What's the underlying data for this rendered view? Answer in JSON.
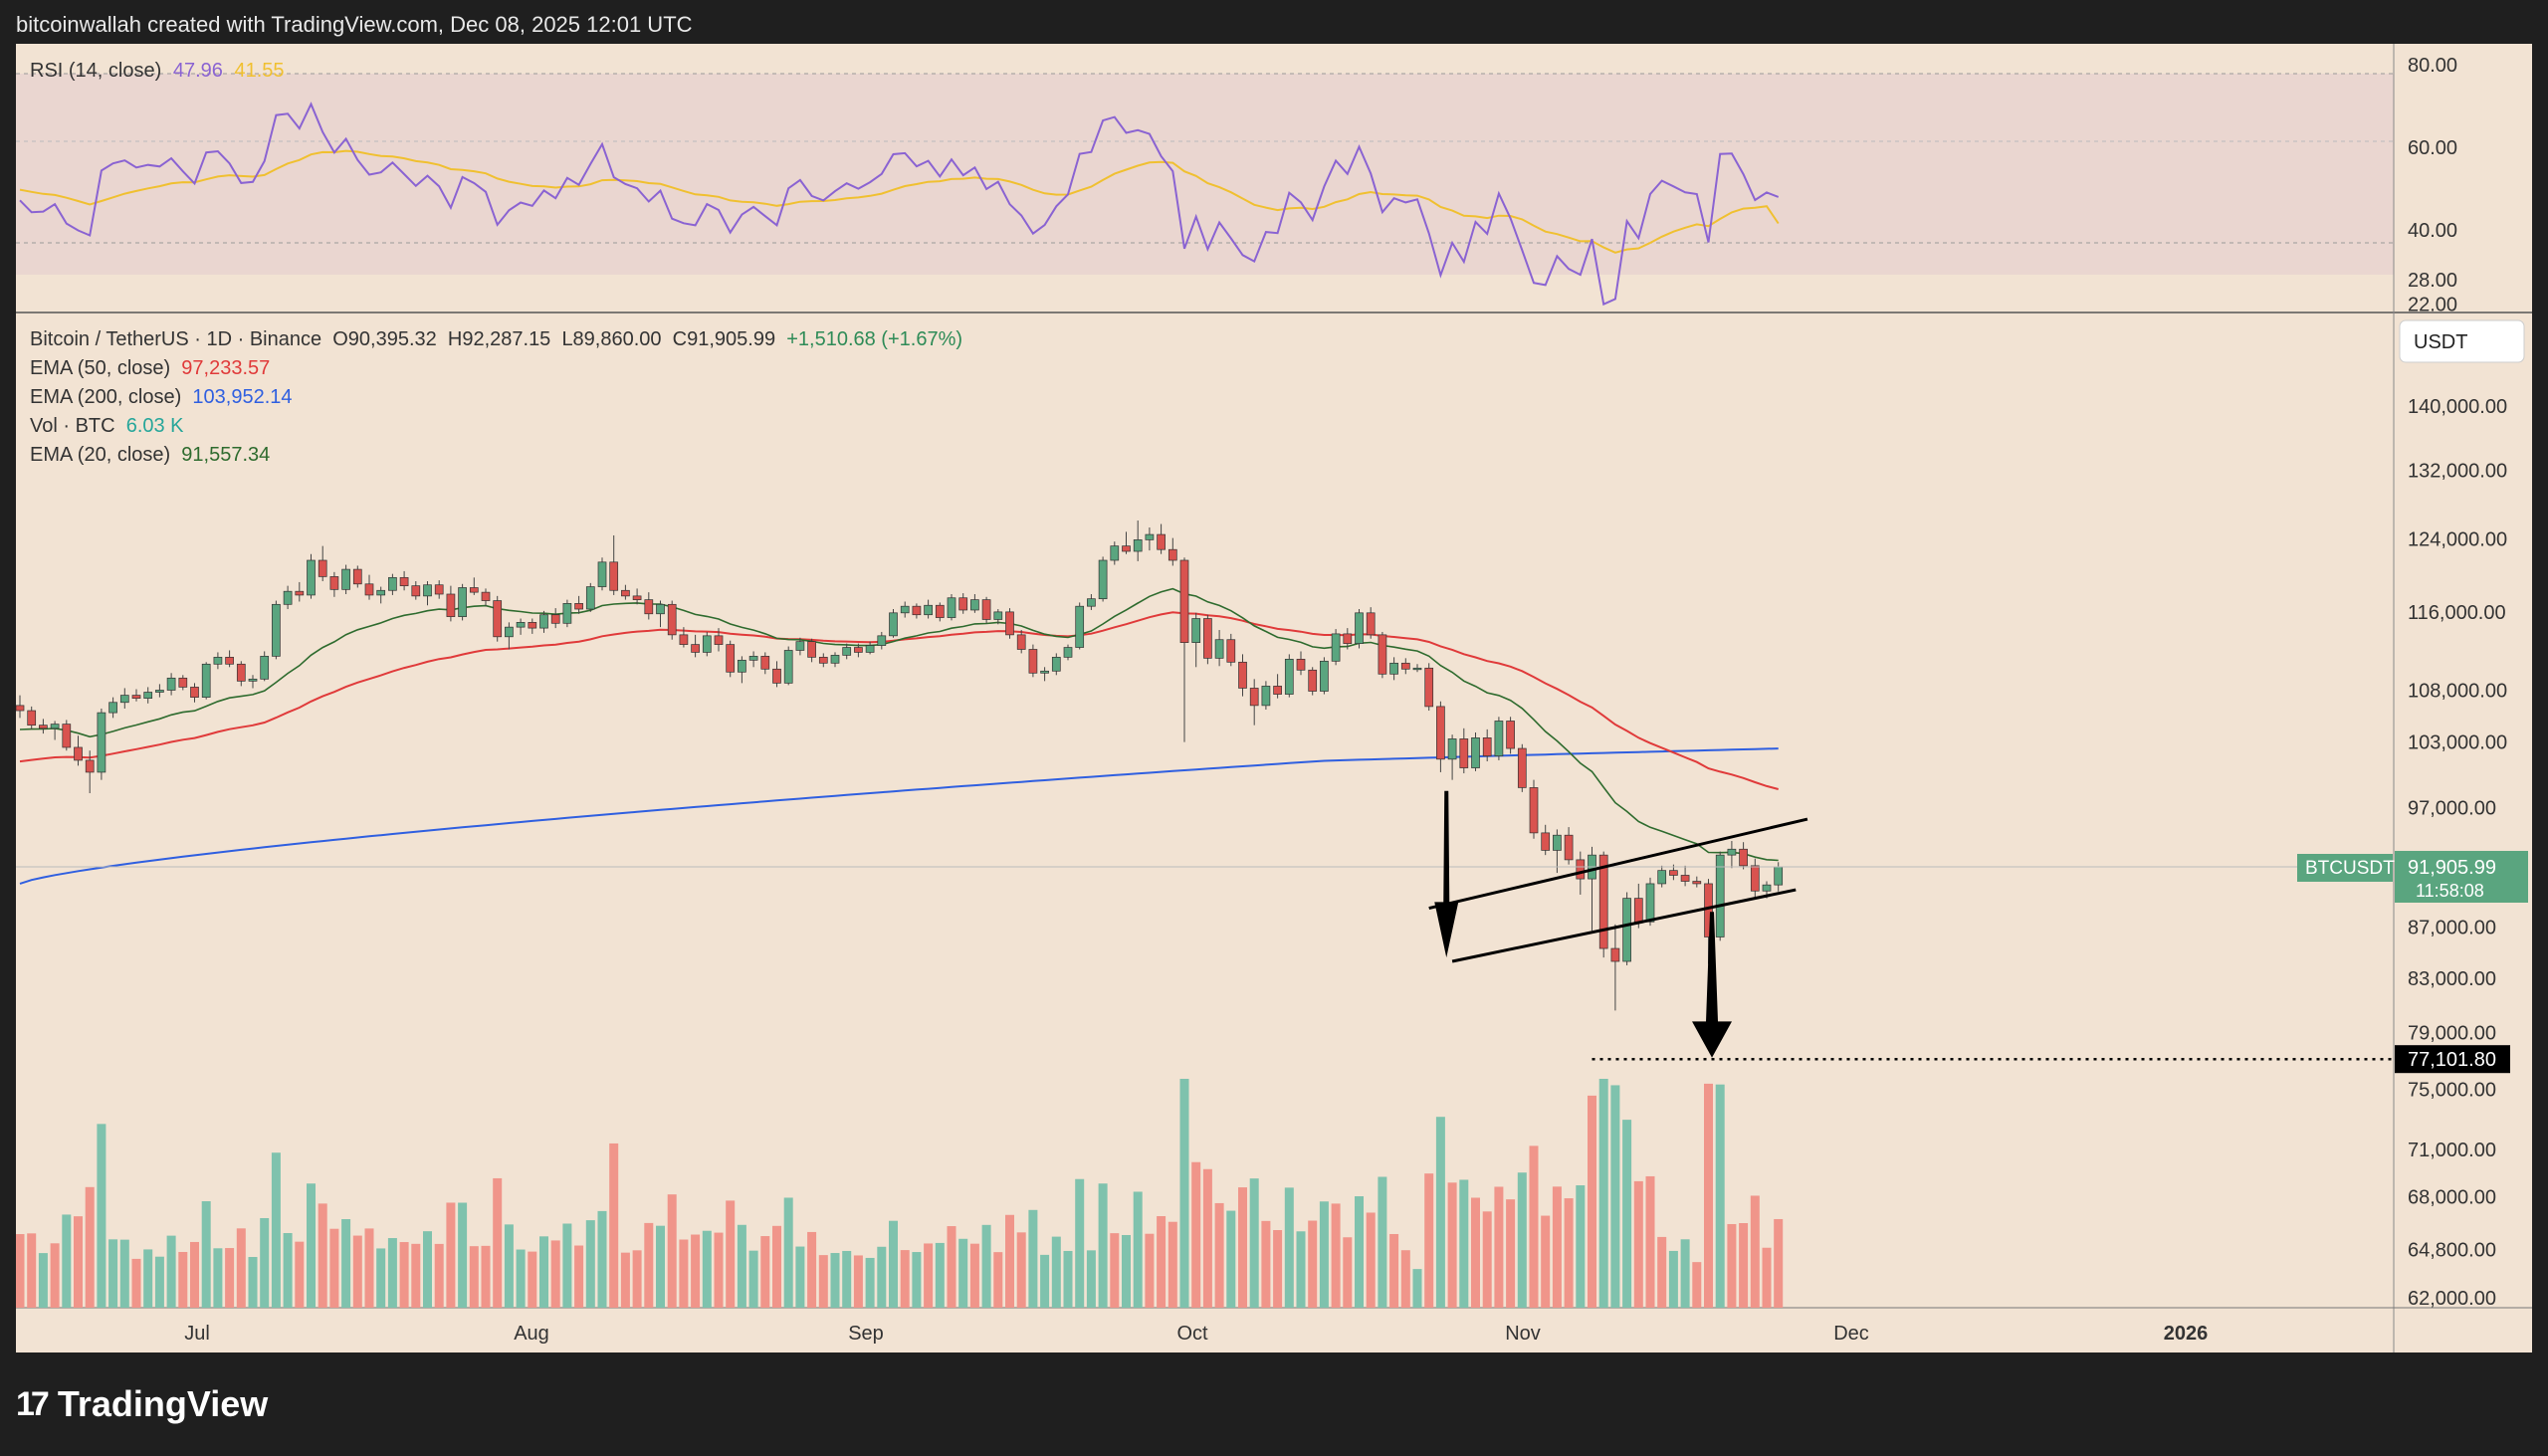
{
  "header": {
    "text": "bitcoinwallah created with TradingView.com, Dec 08, 2025 12:01 UTC"
  },
  "footer": {
    "brand": "TradingView",
    "logo_glyph": "17"
  },
  "colors": {
    "background": "#f2e3d3",
    "frame": "#1f1f1f",
    "up": "#5aa57f",
    "down": "#d9534f",
    "ema20": "#2e6b2e",
    "ema50": "#e03a3a",
    "ema200": "#2f5fe0",
    "rsi": "#8a63d2",
    "rsi_ma": "#f0c030",
    "vol_up": "#7fc2ad",
    "vol_down": "#f0958a"
  },
  "rsi_panel": {
    "title": "RSI (14, close)",
    "value1": "47.96",
    "value2": "41.55",
    "ticks": [
      "80.00",
      "60.00",
      "40.00",
      "28.00",
      "22.00"
    ]
  },
  "main_legend": {
    "symbol": "Bitcoin / TetherUS · 1D · Binance",
    "open": "O90,395.32",
    "high": "H92,287.15",
    "low": "L89,860.00",
    "close": "C91,905.99",
    "change": "+1,510.68 (+1.67%)",
    "ema50": {
      "label": "EMA (50, close)",
      "value": "97,233.57"
    },
    "ema200": {
      "label": "EMA (200, close)",
      "value": "103,952.14"
    },
    "vol": {
      "label": "Vol · BTC",
      "value": "6.03 K"
    },
    "ema20": {
      "label": "EMA (20, close)",
      "value": "91,557.34"
    }
  },
  "price_axis": {
    "currency": "USDT",
    "ticks": [
      "140,000.00",
      "132,000.00",
      "124,000.00",
      "116,000.00",
      "108,000.00",
      "103,000.00",
      "97,000.00",
      "87,000.00",
      "83,000.00",
      "79,000.00",
      "75,000.00",
      "71,000.00",
      "68,000.00",
      "64,800.00",
      "62,000.00"
    ]
  },
  "price_tag": {
    "symbol": "BTCUSDT",
    "price": "91,905.99",
    "countdown": "11:58:08"
  },
  "target_tag": {
    "price": "77,101.80"
  },
  "time_axis": {
    "labels": [
      "Jul",
      "Aug",
      "Sep",
      "Oct",
      "Nov",
      "Dec",
      "2026"
    ]
  },
  "chart_data": {
    "type": "candlestick",
    "log_scale": true,
    "ylim": [
      60000,
      150000
    ],
    "candles": [
      [
        106500,
        107500,
        105300,
        106000
      ],
      [
        106000,
        106400,
        104200,
        104600
      ],
      [
        104600,
        105200,
        103800,
        104300
      ],
      [
        104300,
        105000,
        103200,
        104700
      ],
      [
        104700,
        105100,
        102200,
        102500
      ],
      [
        102500,
        103600,
        100800,
        101300
      ],
      [
        101300,
        102200,
        98300,
        100200
      ],
      [
        100200,
        106200,
        99500,
        105800
      ],
      [
        105800,
        107300,
        105300,
        106800
      ],
      [
        106800,
        108200,
        106200,
        107500
      ],
      [
        107500,
        108100,
        106900,
        107200
      ],
      [
        107200,
        108300,
        106700,
        107800
      ],
      [
        107800,
        108600,
        107300,
        108000
      ],
      [
        108000,
        109700,
        107500,
        109200
      ],
      [
        109200,
        109500,
        108000,
        108300
      ],
      [
        108300,
        108700,
        106800,
        107300
      ],
      [
        107300,
        110800,
        107100,
        110600
      ],
      [
        110600,
        111800,
        110100,
        111300
      ],
      [
        111300,
        112000,
        110300,
        110600
      ],
      [
        110600,
        110900,
        108400,
        108900
      ],
      [
        108900,
        109500,
        108200,
        109100
      ],
      [
        109100,
        111900,
        108900,
        111400
      ],
      [
        111400,
        117200,
        111100,
        116800
      ],
      [
        116800,
        118800,
        116300,
        118200
      ],
      [
        118200,
        119200,
        117100,
        117800
      ],
      [
        117800,
        122300,
        117400,
        121600
      ],
      [
        121600,
        123200,
        119300,
        119800
      ],
      [
        119800,
        120300,
        117600,
        118400
      ],
      [
        118400,
        121100,
        117900,
        120600
      ],
      [
        120600,
        121000,
        118600,
        119000
      ],
      [
        119000,
        120000,
        117300,
        117800
      ],
      [
        117800,
        118700,
        116900,
        118300
      ],
      [
        118300,
        120100,
        117800,
        119700
      ],
      [
        119700,
        120400,
        118300,
        118800
      ],
      [
        118800,
        119300,
        117300,
        117700
      ],
      [
        117700,
        119300,
        116700,
        118900
      ],
      [
        118900,
        119400,
        117400,
        117900
      ],
      [
        117900,
        118800,
        115000,
        115500
      ],
      [
        115500,
        119000,
        115100,
        118600
      ],
      [
        118600,
        119700,
        117800,
        118100
      ],
      [
        118100,
        118500,
        116600,
        117200
      ],
      [
        117200,
        117700,
        112900,
        113400
      ],
      [
        113400,
        114900,
        112100,
        114400
      ],
      [
        114400,
        115300,
        113600,
        114900
      ],
      [
        114900,
        115300,
        113700,
        114300
      ],
      [
        114300,
        116100,
        113800,
        115700
      ],
      [
        115700,
        116400,
        114300,
        114800
      ],
      [
        114800,
        117300,
        114400,
        116900
      ],
      [
        116900,
        117700,
        115800,
        116300
      ],
      [
        116300,
        119100,
        116000,
        118700
      ],
      [
        118700,
        121900,
        118300,
        121400
      ],
      [
        121400,
        124400,
        117800,
        118300
      ],
      [
        118300,
        118900,
        117300,
        117700
      ],
      [
        117700,
        118500,
        116800,
        117300
      ],
      [
        117300,
        118100,
        115200,
        115800
      ],
      [
        115800,
        117200,
        114400,
        116800
      ],
      [
        116800,
        117200,
        113100,
        113600
      ],
      [
        113600,
        114400,
        112300,
        112600
      ],
      [
        112600,
        113600,
        111300,
        111800
      ],
      [
        111800,
        113900,
        111400,
        113500
      ],
      [
        113500,
        114300,
        111900,
        112600
      ],
      [
        112600,
        113000,
        109300,
        109800
      ],
      [
        109800,
        111400,
        108700,
        111000
      ],
      [
        111000,
        111900,
        110300,
        111400
      ],
      [
        111400,
        111800,
        109600,
        110100
      ],
      [
        110100,
        110900,
        108300,
        108700
      ],
      [
        108700,
        112400,
        108500,
        112000
      ],
      [
        112000,
        113300,
        111500,
        112900
      ],
      [
        112900,
        113200,
        110800,
        111300
      ],
      [
        111300,
        111700,
        110300,
        110700
      ],
      [
        110700,
        111800,
        110300,
        111500
      ],
      [
        111500,
        112700,
        111100,
        112300
      ],
      [
        112300,
        112700,
        111300,
        111800
      ],
      [
        111800,
        112900,
        111600,
        112500
      ],
      [
        112500,
        113900,
        112100,
        113500
      ],
      [
        113500,
        116300,
        113300,
        115900
      ],
      [
        115900,
        117100,
        115400,
        116600
      ],
      [
        116600,
        116900,
        115300,
        115700
      ],
      [
        115700,
        117300,
        115300,
        116700
      ],
      [
        116700,
        117000,
        115000,
        115400
      ],
      [
        115400,
        117900,
        115100,
        117500
      ],
      [
        117500,
        118000,
        115800,
        116200
      ],
      [
        116200,
        117900,
        115900,
        117300
      ],
      [
        117300,
        117600,
        114800,
        115200
      ],
      [
        115200,
        116300,
        114700,
        116000
      ],
      [
        116000,
        116400,
        113200,
        113600
      ],
      [
        113600,
        114100,
        111700,
        112100
      ],
      [
        112100,
        112600,
        109300,
        109700
      ],
      [
        109700,
        110300,
        108900,
        109900
      ],
      [
        109900,
        111700,
        109500,
        111300
      ],
      [
        111300,
        112600,
        111000,
        112300
      ],
      [
        112300,
        117000,
        112100,
        116600
      ],
      [
        116600,
        117900,
        116200,
        117400
      ],
      [
        117400,
        122000,
        117100,
        121600
      ],
      [
        121600,
        123700,
        121100,
        123200
      ],
      [
        123200,
        124800,
        122300,
        122600
      ],
      [
        122600,
        126100,
        121500,
        123900
      ],
      [
        123900,
        125300,
        122700,
        124500
      ],
      [
        124500,
        125700,
        122300,
        122800
      ],
      [
        122800,
        124100,
        121000,
        121600
      ],
      [
        121600,
        121900,
        103000,
        112800
      ],
      [
        112800,
        115900,
        110300,
        115300
      ],
      [
        115300,
        115700,
        110600,
        111200
      ],
      [
        111200,
        114100,
        110400,
        113100
      ],
      [
        113100,
        113700,
        110400,
        110800
      ],
      [
        110800,
        111600,
        107400,
        108200
      ],
      [
        108200,
        109100,
        104600,
        106500
      ],
      [
        106500,
        108900,
        106100,
        108400
      ],
      [
        108400,
        109600,
        107200,
        107600
      ],
      [
        107600,
        111600,
        107300,
        111100
      ],
      [
        111100,
        111900,
        109500,
        110000
      ],
      [
        110000,
        110300,
        107500,
        107900
      ],
      [
        107900,
        111300,
        107600,
        110900
      ],
      [
        110900,
        114200,
        110500,
        113700
      ],
      [
        113700,
        114300,
        112100,
        112700
      ],
      [
        112700,
        116300,
        112200,
        115900
      ],
      [
        115900,
        116500,
        113200,
        113600
      ],
      [
        113600,
        113900,
        109200,
        109600
      ],
      [
        109600,
        111300,
        109000,
        110700
      ],
      [
        110700,
        111200,
        109600,
        110100
      ],
      [
        110100,
        110600,
        109800,
        110200
      ],
      [
        110200,
        110700,
        106000,
        106400
      ],
      [
        106400,
        106900,
        100200,
        101400
      ],
      [
        101400,
        103700,
        99500,
        103300
      ],
      [
        103300,
        104300,
        100100,
        100600
      ],
      [
        100600,
        103900,
        100300,
        103400
      ],
      [
        103400,
        104200,
        101200,
        101700
      ],
      [
        101700,
        105400,
        101300,
        105000
      ],
      [
        105000,
        105400,
        101900,
        102400
      ],
      [
        102400,
        102800,
        98400,
        98800
      ],
      [
        98800,
        99500,
        94300,
        94800
      ],
      [
        94800,
        95500,
        92900,
        93300
      ],
      [
        93300,
        95100,
        91400,
        94600
      ],
      [
        94600,
        95300,
        92100,
        92500
      ],
      [
        92500,
        93200,
        89600,
        90900
      ],
      [
        90900,
        93600,
        86700,
        92900
      ],
      [
        92900,
        93200,
        84600,
        85300
      ],
      [
        85300,
        87200,
        80600,
        84300
      ],
      [
        84300,
        89800,
        84000,
        89300
      ],
      [
        89300,
        90500,
        86900,
        87400
      ],
      [
        87400,
        91000,
        87100,
        90500
      ],
      [
        90500,
        92000,
        90200,
        91600
      ],
      [
        91600,
        92100,
        90800,
        91200
      ],
      [
        91200,
        92000,
        90300,
        90700
      ],
      [
        90700,
        91100,
        90200,
        90500
      ],
      [
        90500,
        90900,
        84100,
        86200
      ],
      [
        86200,
        93200,
        85900,
        92900
      ],
      [
        92900,
        94100,
        91800,
        93400
      ],
      [
        93400,
        94000,
        91700,
        92000
      ],
      [
        92000,
        92600,
        89400,
        89900
      ],
      [
        89900,
        90700,
        89300,
        90400
      ],
      [
        90400,
        92300,
        89860,
        91906
      ]
    ],
    "volume_up": [
      false,
      false,
      true,
      false,
      true,
      false,
      false,
      true,
      true,
      true,
      false,
      true,
      true,
      true,
      false,
      false,
      true,
      true,
      false,
      false,
      true,
      true,
      true,
      true,
      false,
      true,
      false,
      false,
      true,
      false,
      false,
      true,
      true,
      false,
      false,
      true,
      false,
      false,
      true,
      false,
      false,
      false,
      true,
      true,
      false,
      true,
      false,
      true,
      false,
      true,
      true,
      false,
      false,
      false,
      false,
      true,
      false,
      false,
      false,
      true,
      false,
      false,
      true,
      true,
      false,
      false,
      true,
      true,
      false,
      false,
      true,
      true,
      false,
      true,
      true,
      true,
      false,
      true,
      false,
      true,
      false,
      true,
      false,
      true,
      false,
      false,
      false,
      true,
      true,
      true,
      true,
      true,
      true,
      true,
      false,
      true,
      true,
      false,
      false,
      false,
      true,
      false,
      false,
      false,
      true,
      false,
      true,
      false,
      false,
      true,
      true,
      false,
      true,
      false,
      false,
      true,
      false,
      true,
      false,
      false,
      true,
      false,
      true,
      false,
      true,
      false,
      false,
      false,
      false,
      true,
      false,
      false,
      false,
      false,
      true,
      false,
      true,
      true,
      true,
      false,
      false,
      false,
      true,
      true,
      false,
      false,
      true
    ],
    "ema20_end": 91557.34,
    "ema50_end": 97233.57,
    "ema200_end": 103952.14,
    "rsi_last": 47.96,
    "rsi_ma_last": 41.55,
    "channel": {
      "upper": [
        [
          121,
          88500
        ],
        [
          143,
          96000
        ]
      ],
      "lower": [
        [
          123,
          84300
        ],
        [
          143,
          90000
        ]
      ]
    },
    "target_price": 77101.8
  }
}
